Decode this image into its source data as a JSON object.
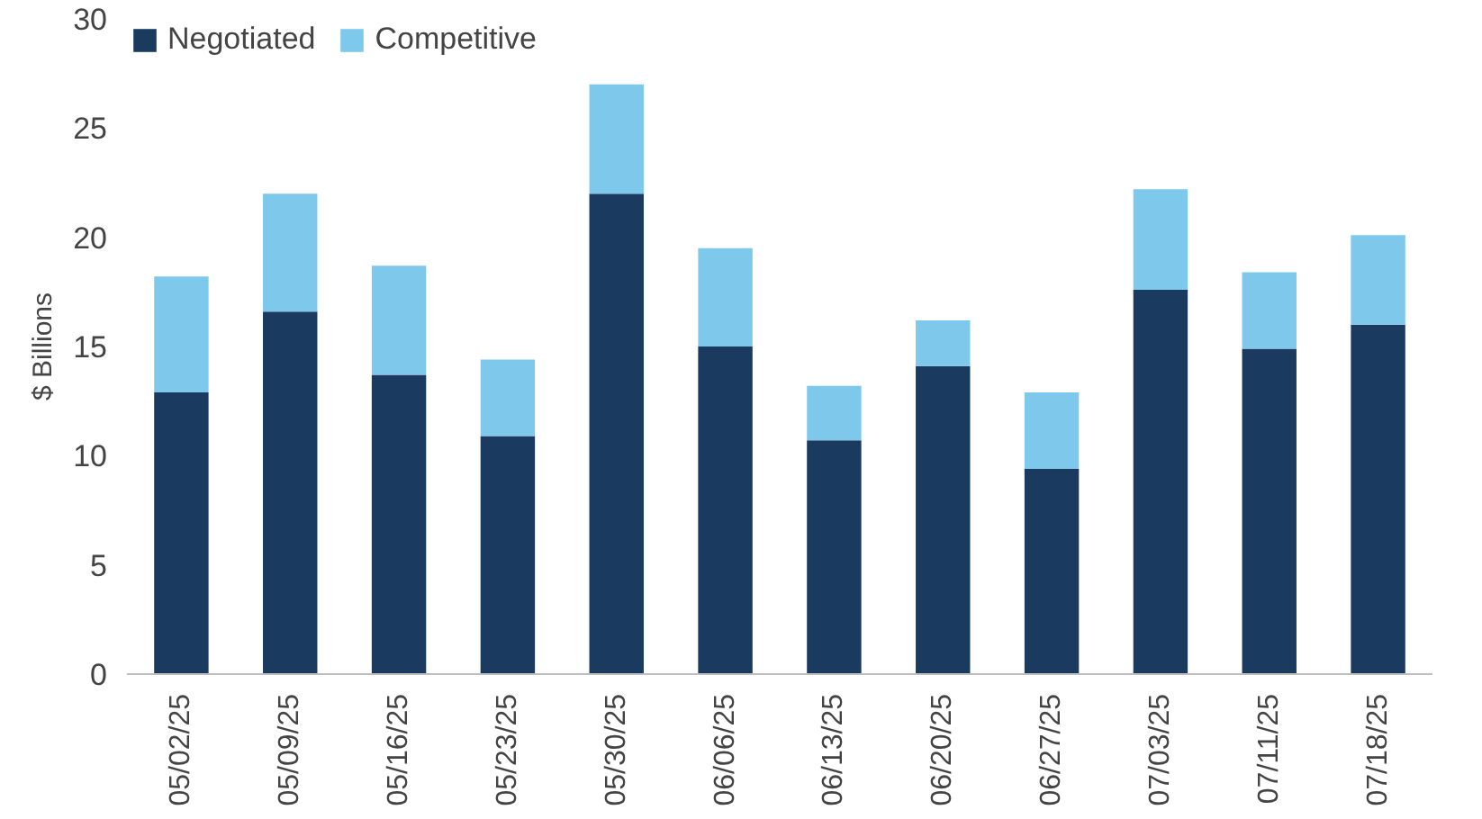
{
  "chart_data": {
    "type": "bar",
    "stacked": true,
    "ylabel": "$ Billions",
    "categories": [
      "05/02/25",
      "05/09/25",
      "05/16/25",
      "05/23/25",
      "05/30/25",
      "06/06/25",
      "06/13/25",
      "06/20/25",
      "06/27/25",
      "07/03/25",
      "07/11/25",
      "07/18/25"
    ],
    "series": [
      {
        "name": "Negotiated",
        "color": "#1b3a5f",
        "values": [
          12.9,
          16.6,
          13.7,
          10.9,
          22.0,
          15.0,
          10.7,
          14.1,
          9.4,
          17.6,
          14.9,
          16.0
        ]
      },
      {
        "name": "Competitive",
        "color": "#7ec8ec",
        "values": [
          5.3,
          5.4,
          5.0,
          3.5,
          5.0,
          4.5,
          2.5,
          2.1,
          3.5,
          4.6,
          3.5,
          4.1
        ]
      }
    ],
    "ylim": [
      0,
      30
    ],
    "yticks": [
      0,
      5,
      10,
      15,
      20,
      25,
      30
    ],
    "grid": false,
    "legend": "top left"
  }
}
